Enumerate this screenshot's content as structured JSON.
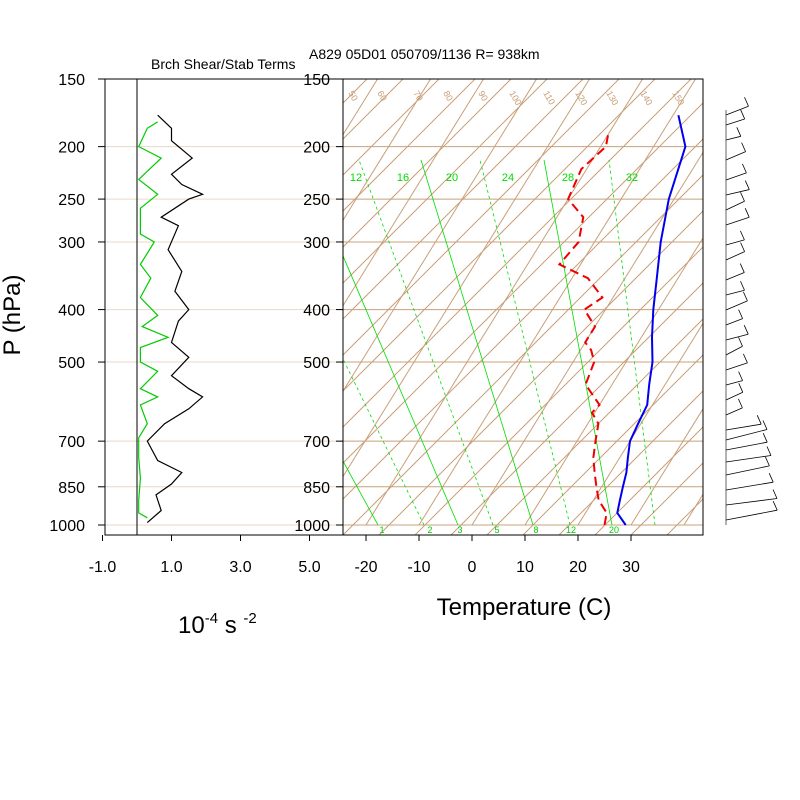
{
  "header": {
    "left_title": "Brch Shear/Stab Terms",
    "right_title": "A829 05D01 050709/1136 R= 938km"
  },
  "axes": {
    "pressure_label": "P (hPa)",
    "pressure_ticks": [
      150,
      200,
      250,
      300,
      400,
      500,
      700,
      850,
      1000
    ],
    "shear_xlabel_base": "10",
    "shear_xlabel_exp1": "-4",
    "shear_xlabel_unit": " s ",
    "shear_xlabel_exp2": "-2",
    "shear_ticks": [
      "-1.0",
      "1.0",
      "3.0",
      "5.0"
    ],
    "temp_xlabel": "Temperature (C)",
    "temp_ticks": [
      "-20",
      "-10",
      "0",
      "10",
      "20",
      "30"
    ]
  },
  "colors": {
    "grid": "#c8a07a",
    "mixing_ratio": "#00dd00",
    "temperature": "#0000ee",
    "dewpoint": "#ee0000",
    "black_series": "#000000",
    "green_series": "#00cc00"
  },
  "chart_data": [
    {
      "type": "line",
      "title": "Brch Shear/Stab Terms",
      "xlabel": "10^-4 s^-2",
      "ylabel": "P (hPa)",
      "xlim": [
        -1.0,
        5.0
      ],
      "ylim": [
        1000,
        150
      ],
      "y_scale": "log",
      "series": [
        {
          "color": "#000000",
          "points": [
            [
              0.3,
              990
            ],
            [
              0.7,
              940
            ],
            [
              0.55,
              880
            ],
            [
              1.0,
              840
            ],
            [
              1.3,
              800
            ],
            [
              0.6,
              760
            ],
            [
              0.3,
              700
            ],
            [
              0.8,
              650
            ],
            [
              1.5,
              610
            ],
            [
              1.9,
              580
            ],
            [
              1.5,
              560
            ],
            [
              1.0,
              530
            ],
            [
              1.5,
              490
            ],
            [
              1.0,
              460
            ],
            [
              1.2,
              420
            ],
            [
              1.5,
              400
            ],
            [
              1.1,
              370
            ],
            [
              1.3,
              340
            ],
            [
              0.9,
              310
            ],
            [
              1.2,
              280
            ],
            [
              0.7,
              270
            ],
            [
              1.5,
              250
            ],
            [
              1.9,
              245
            ],
            [
              1.3,
              235
            ],
            [
              1.0,
              225
            ],
            [
              1.6,
              210
            ],
            [
              1.0,
              195
            ],
            [
              1.0,
              185
            ],
            [
              0.6,
              175
            ]
          ]
        },
        {
          "color": "#00cc00",
          "points": [
            [
              0.3,
              970
            ],
            [
              0.05,
              950
            ],
            [
              0.05,
              900
            ],
            [
              0.1,
              820
            ],
            [
              0.05,
              750
            ],
            [
              0.05,
              690
            ],
            [
              0.3,
              650
            ],
            [
              0.1,
              600
            ],
            [
              0.6,
              580
            ],
            [
              0.1,
              560
            ],
            [
              0.6,
              520
            ],
            [
              0.1,
              500
            ],
            [
              0.1,
              470
            ],
            [
              0.9,
              450
            ],
            [
              0.15,
              430
            ],
            [
              0.6,
              410
            ],
            [
              0.1,
              380
            ],
            [
              0.4,
              350
            ],
            [
              0.1,
              330
            ],
            [
              0.5,
              300
            ],
            [
              0.1,
              290
            ],
            [
              0.1,
              260
            ],
            [
              0.6,
              245
            ],
            [
              0.05,
              230
            ],
            [
              0.7,
              210
            ],
            [
              0.05,
              200
            ],
            [
              0.3,
              185
            ],
            [
              0.6,
              180
            ]
          ]
        }
      ]
    },
    {
      "type": "line",
      "title": "A829 05D01 050709/1136 R= 938km",
      "xlabel": "Temperature (C)",
      "ylabel": "P (hPa)",
      "xlim": [
        -24,
        41
      ],
      "ylim": [
        1000,
        150
      ],
      "y_scale": "log",
      "grid": true,
      "skew_t": true,
      "mixing_ratio_labels_upper": [
        "12",
        "16",
        "20",
        "24",
        "28",
        "32"
      ],
      "mixing_ratio_labels_lower": [
        "1",
        "2",
        "3",
        "5",
        "8",
        "12",
        "20"
      ],
      "series": [
        {
          "name": "Temperature",
          "color": "#0000ee",
          "style": "solid",
          "points": [
            [
              29,
              1000
            ],
            [
              26,
              950
            ],
            [
              25,
              900
            ],
            [
              24,
              850
            ],
            [
              23,
              800
            ],
            [
              21.5,
              750
            ],
            [
              20,
              700
            ],
            [
              19.5,
              650
            ],
            [
              19,
              600
            ],
            [
              17,
              550
            ],
            [
              15,
              500
            ],
            [
              12,
              450
            ],
            [
              9,
              400
            ],
            [
              6,
              350
            ],
            [
              2.5,
              300
            ],
            [
              -1,
              250
            ],
            [
              -4,
              200
            ],
            [
              -9,
              175
            ]
          ]
        },
        {
          "name": "Dewpoint",
          "color": "#ee0000",
          "style": "dashed",
          "points": [
            [
              25,
              1000
            ],
            [
              24,
              950
            ],
            [
              21,
              900
            ],
            [
              19,
              850
            ],
            [
              17,
              800
            ],
            [
              15,
              750
            ],
            [
              13.5,
              700
            ],
            [
              12,
              650
            ],
            [
              9.5,
              620
            ],
            [
              10,
              600
            ],
            [
              5,
              550
            ],
            [
              4,
              500
            ],
            [
              2,
              475
            ],
            [
              0,
              460
            ],
            [
              0,
              430
            ],
            [
              -4,
              400
            ],
            [
              -2,
              380
            ],
            [
              -7,
              350
            ],
            [
              -14,
              330
            ],
            [
              -13,
              300
            ],
            [
              -15,
              270
            ],
            [
              -20,
              250
            ],
            [
              -21,
              220
            ],
            [
              -19,
              200
            ],
            [
              -20,
              190
            ]
          ]
        }
      ]
    }
  ]
}
